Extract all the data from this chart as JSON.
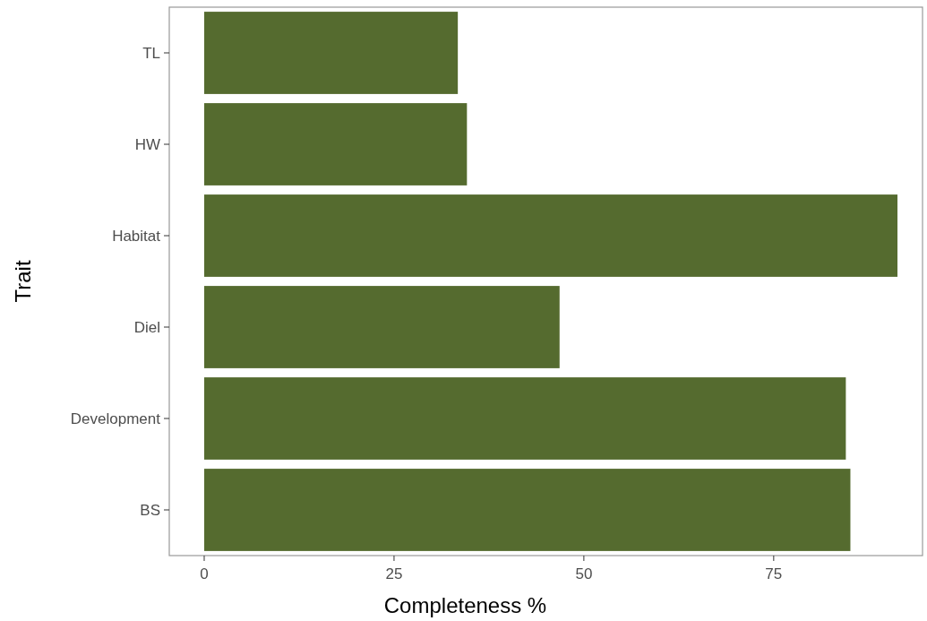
{
  "chart_data": {
    "type": "bar",
    "orientation": "horizontal",
    "xlabel": "Completeness %",
    "ylabel": "Trait",
    "categories": [
      "TL",
      "HW",
      "Habitat",
      "Diel",
      "Development",
      "BS"
    ],
    "values": [
      33.4,
      34.6,
      91.3,
      46.8,
      84.5,
      85.1
    ],
    "color": "#556b2f",
    "xlim": [
      -4.6,
      94.6
    ],
    "xticks": [
      0,
      25,
      50,
      75
    ],
    "grid": false
  }
}
